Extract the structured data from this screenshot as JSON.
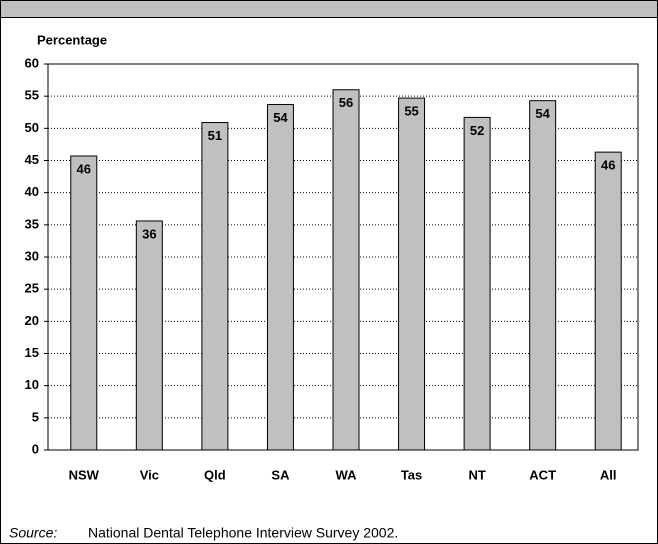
{
  "chart_data": {
    "type": "bar",
    "y_axis_label": "Percentage",
    "categories": [
      "NSW",
      "Vic",
      "Qld",
      "SA",
      "WA",
      "Tas",
      "NT",
      "ACT",
      "All"
    ],
    "values": [
      45.7,
      35.6,
      50.9,
      53.7,
      56.0,
      54.7,
      51.7,
      54.3,
      46.3
    ],
    "value_labels": [
      "46",
      "36",
      "51",
      "54",
      "56",
      "55",
      "52",
      "54",
      "46"
    ],
    "color": "#c0c0c0",
    "ylim": [
      0,
      60
    ],
    "yticks": [
      0,
      5,
      10,
      15,
      20,
      25,
      30,
      35,
      40,
      45,
      50,
      55,
      60
    ],
    "grid": true
  },
  "footer": {
    "label": "Source:",
    "text": "National Dental Telephone Interview Survey 2002."
  }
}
